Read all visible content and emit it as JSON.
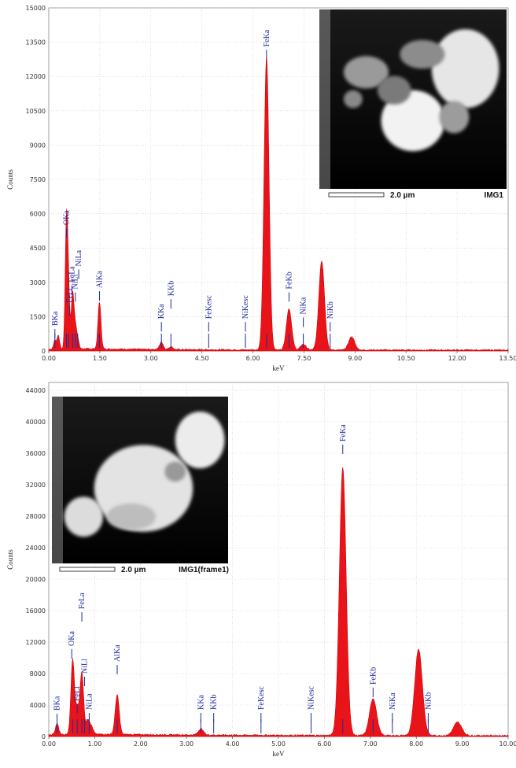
{
  "chart_data": [
    {
      "type": "line",
      "ylabel": "Counts",
      "xlabel": "keV",
      "xlim": [
        0,
        13.5
      ],
      "ylim": [
        0,
        15000
      ],
      "x_ticks": [
        "0.00",
        "1.50",
        "3.00",
        "4.50",
        "6.00",
        "7.50",
        "9.00",
        "10.50",
        "12.00",
        "13.50"
      ],
      "y_ticks": [
        "0",
        "1500",
        "3000",
        "4500",
        "6000",
        "7500",
        "9000",
        "10500",
        "12000",
        "13500",
        "15000"
      ],
      "peaks": [
        {
          "x": 0.18,
          "y": 400
        },
        {
          "x": 0.28,
          "y": 600
        },
        {
          "x": 0.52,
          "y": 5400
        },
        {
          "x": 0.58,
          "y": 2200
        },
        {
          "x": 0.7,
          "y": 2400
        },
        {
          "x": 0.78,
          "y": 900
        },
        {
          "x": 0.85,
          "y": 400
        },
        {
          "x": 1.49,
          "y": 2050
        },
        {
          "x": 3.31,
          "y": 320
        },
        {
          "x": 3.59,
          "y": 120
        },
        {
          "x": 6.4,
          "y": 12800
        },
        {
          "x": 7.06,
          "y": 1800
        },
        {
          "x": 7.48,
          "y": 250
        },
        {
          "x": 8.02,
          "y": 3900
        },
        {
          "x": 8.9,
          "y": 580
        }
      ],
      "labels": [
        {
          "text": "BKa",
          "x": 0.18,
          "y": 1100
        },
        {
          "text": "OKa",
          "x": 0.52,
          "y": 5500
        },
        {
          "text": "FeLl",
          "x": 0.61,
          "y": 2100
        },
        {
          "text": "FeLa",
          "x": 0.68,
          "y": 3000
        },
        {
          "text": "NiLl",
          "x": 0.78,
          "y": 2700
        },
        {
          "text": "NiLa",
          "x": 0.88,
          "y": 3700
        },
        {
          "text": "AlKa",
          "x": 1.49,
          "y": 2750
        },
        {
          "text": "KKa",
          "x": 3.31,
          "y": 1400
        },
        {
          "text": "KKb",
          "x": 3.59,
          "y": 2400
        },
        {
          "text": "FeKesc",
          "x": 4.7,
          "y": 1400
        },
        {
          "text": "NiKesc",
          "x": 5.78,
          "y": 1400
        },
        {
          "text": "FeKa",
          "x": 6.4,
          "y": 13300
        },
        {
          "text": "FeKb",
          "x": 7.06,
          "y": 2700
        },
        {
          "text": "NiKa",
          "x": 7.48,
          "y": 1600
        },
        {
          "text": "NiKb",
          "x": 8.27,
          "y": 1400
        }
      ],
      "markers": [
        0.18,
        0.52,
        0.58,
        0.7,
        0.78,
        0.85,
        1.49,
        3.31,
        3.59,
        4.7,
        5.78,
        6.4,
        7.06,
        7.48,
        8.27
      ],
      "inset": {
        "scale_text": "2.0 µm",
        "name": "IMG1"
      }
    },
    {
      "type": "line",
      "ylabel": "Counts",
      "xlabel": "keV",
      "xlim": [
        0,
        10
      ],
      "ylim": [
        0,
        45000
      ],
      "x_ticks": [
        "0.00",
        "1.00",
        "2.00",
        "3.00",
        "4.00",
        "5.00",
        "6.00",
        "7.00",
        "8.00",
        "9.00",
        "10.00"
      ],
      "y_ticks": [
        "0",
        "4000",
        "8000",
        "12000",
        "16000",
        "20000",
        "24000",
        "28000",
        "32000",
        "36000",
        "40000",
        "44000"
      ],
      "peaks": [
        {
          "x": 0.18,
          "y": 1400
        },
        {
          "x": 0.52,
          "y": 9500
        },
        {
          "x": 0.62,
          "y": 3200
        },
        {
          "x": 0.72,
          "y": 7800
        },
        {
          "x": 0.85,
          "y": 1800
        },
        {
          "x": 0.93,
          "y": 900
        },
        {
          "x": 1.49,
          "y": 5000
        },
        {
          "x": 3.31,
          "y": 800
        },
        {
          "x": 6.4,
          "y": 34000
        },
        {
          "x": 7.06,
          "y": 4700
        },
        {
          "x": 8.05,
          "y": 11000
        },
        {
          "x": 8.9,
          "y": 1700
        }
      ],
      "labels": [
        {
          "text": "BKa",
          "x": 0.18,
          "y": 3300
        },
        {
          "text": "OKa",
          "x": 0.5,
          "y": 11500
        },
        {
          "text": "FeLa",
          "x": 0.72,
          "y": 16200
        },
        {
          "text": "FeLl",
          "x": 0.62,
          "y": 4500
        },
        {
          "text": "NiLl",
          "x": 0.78,
          "y": 8000
        },
        {
          "text": "NiLa",
          "x": 0.88,
          "y": 3400
        },
        {
          "text": "AlKa",
          "x": 1.49,
          "y": 9500
        },
        {
          "text": "KKa",
          "x": 3.31,
          "y": 3400
        },
        {
          "text": "KKb",
          "x": 3.59,
          "y": 3400
        },
        {
          "text": "FeKesc",
          "x": 4.62,
          "y": 3400
        },
        {
          "text": "NiKesc",
          "x": 5.71,
          "y": 3400
        },
        {
          "text": "FeKa",
          "x": 6.4,
          "y": 37500
        },
        {
          "text": "FeKb",
          "x": 7.06,
          "y": 6600
        },
        {
          "text": "NiKa",
          "x": 7.48,
          "y": 3400
        },
        {
          "text": "NiKb",
          "x": 8.26,
          "y": 3400
        }
      ],
      "markers": [
        0.18,
        0.52,
        0.62,
        0.72,
        0.78,
        0.88,
        1.49,
        3.31,
        3.59,
        4.62,
        5.71,
        6.4,
        7.06,
        7.48,
        8.26
      ],
      "inset": {
        "scale_text": "2.0 µm",
        "name": "IMG1(frame1)"
      }
    }
  ]
}
